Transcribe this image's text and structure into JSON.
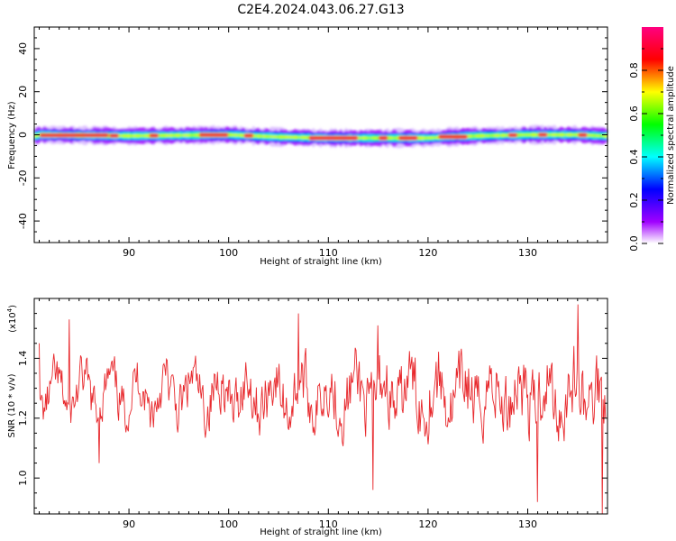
{
  "title": "C2E4.2024.043.06.27.G13",
  "chart_data": [
    {
      "type": "heatmap",
      "xlabel": "Height of straight line (km)",
      "ylabel": "Frequency (Hz)",
      "xlim": [
        80.5,
        138
      ],
      "ylim": [
        -50,
        50
      ],
      "x_ticks": [
        90,
        100,
        110,
        120,
        130
      ],
      "y_ticks": [
        -40,
        -20,
        0,
        20,
        40
      ],
      "colorbar": {
        "label": "Normalized spectral amplitude",
        "range": [
          0,
          1
        ],
        "ticks": [
          0.0,
          0.2,
          0.4,
          0.6,
          0.8
        ],
        "tick_labels": [
          "0.0",
          "0.2",
          "0.4",
          "0.6",
          "0.8"
        ],
        "colors": [
          "#ffffff",
          "#a000ff",
          "#0000ff",
          "#00ffff",
          "#00ff00",
          "#ffff00",
          "#ff0000",
          "#ff0080"
        ]
      },
      "band_center_hz": [
        [
          81,
          0
        ],
        [
          90,
          -0.5
        ],
        [
          100,
          0
        ],
        [
          105,
          -1
        ],
        [
          110,
          -1.5
        ],
        [
          120,
          -1.5
        ],
        [
          122,
          -1
        ],
        [
          125,
          -0.5
        ],
        [
          130,
          0
        ],
        [
          135,
          0
        ],
        [
          137.5,
          -0.5
        ]
      ],
      "peak_segments_km": [
        [
          81,
          88
        ],
        [
          88,
          89
        ],
        [
          92,
          93
        ],
        [
          97,
          100
        ],
        [
          101.5,
          102.5
        ],
        [
          108,
          113
        ],
        [
          115,
          116
        ],
        [
          117,
          119
        ],
        [
          121,
          124
        ],
        [
          128,
          129
        ],
        [
          131,
          132
        ],
        [
          135,
          136
        ]
      ]
    },
    {
      "type": "line",
      "xlabel": "Height of straight line (km)",
      "ylabel": "SNR (10 * v/v)",
      "multiplier_label": "(x10",
      "multiplier_exp": "4",
      "multiplier_close": ")",
      "xlim": [
        80.5,
        138
      ],
      "ylim": [
        0.88,
        1.6
      ],
      "x_ticks": [
        90,
        100,
        110,
        120,
        130
      ],
      "y_ticks": [
        1.0,
        1.2,
        1.4
      ],
      "y_tick_labels": [
        "1.0",
        "1.2",
        "1.4"
      ],
      "color": "#e8292d",
      "trace_params": {
        "points": 700,
        "seed": 11,
        "mean": 1.28
      },
      "notable_points": [
        {
          "x": 81,
          "y": 1.45
        },
        {
          "x": 84,
          "y": 1.53
        },
        {
          "x": 87,
          "y": 1.05
        },
        {
          "x": 107,
          "y": 1.55
        },
        {
          "x": 114.5,
          "y": 0.96
        },
        {
          "x": 115,
          "y": 1.51
        },
        {
          "x": 131,
          "y": 0.92
        },
        {
          "x": 135,
          "y": 1.58
        },
        {
          "x": 137.5,
          "y": 0.88
        }
      ]
    }
  ]
}
